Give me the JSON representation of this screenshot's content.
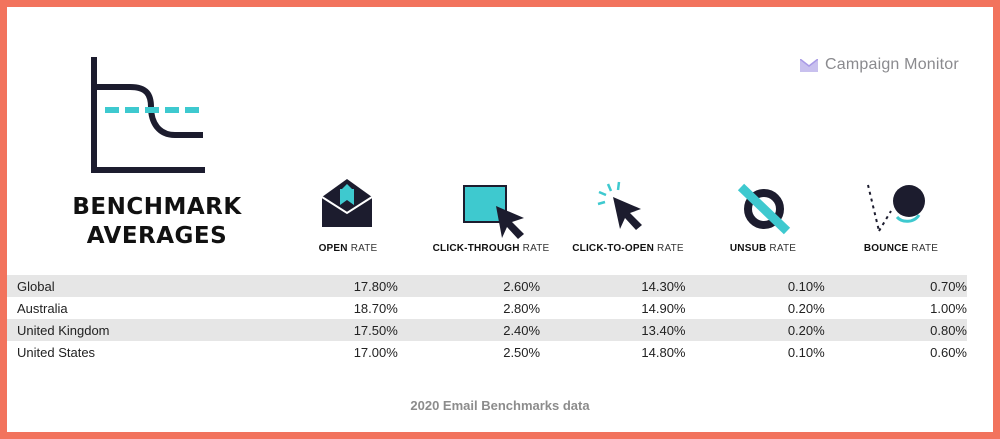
{
  "branding": {
    "name": "Campaign Monitor",
    "logo_icon": "envelope-mark-icon"
  },
  "headline": {
    "line1": "BENCHMARK",
    "line2": "AVERAGES"
  },
  "chart_data": {
    "type": "table",
    "columns": [
      {
        "main": "OPEN",
        "suffix": "RATE",
        "icon": "envelope-icon"
      },
      {
        "main": "CLICK-THROUGH",
        "suffix": "RATE",
        "icon": "cursor-square-icon"
      },
      {
        "main": "CLICK-TO-OPEN",
        "suffix": "RATE",
        "icon": "click-cursor-icon"
      },
      {
        "main": "UNSUB",
        "suffix": "RATE",
        "icon": "unsubscribe-icon"
      },
      {
        "main": "BOUNCE",
        "suffix": "RATE",
        "icon": "bounce-ball-icon"
      }
    ],
    "rows": [
      {
        "country": "Global",
        "values": [
          "17.80%",
          "2.60%",
          "14.30%",
          "0.10%",
          "0.70%"
        ]
      },
      {
        "country": "Australia",
        "values": [
          "18.70%",
          "2.80%",
          "14.90%",
          "0.20%",
          "1.00%"
        ]
      },
      {
        "country": "United Kingdom",
        "values": [
          "17.50%",
          "2.40%",
          "13.40%",
          "0.20%",
          "0.80%"
        ]
      },
      {
        "country": "United States",
        "values": [
          "17.00%",
          "2.50%",
          "14.80%",
          "0.10%",
          "0.60%"
        ]
      }
    ]
  },
  "footer": "2020 Email Benchmarks data",
  "colors": {
    "frame": "#f2735d",
    "accent": "#3ec9cf",
    "dark": "#1c1c2e",
    "row_shade": "#e6e6e6"
  }
}
